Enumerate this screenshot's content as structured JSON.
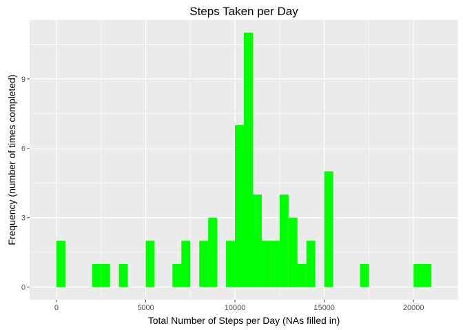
{
  "chart_data": {
    "type": "bar",
    "title": "Steps Taken per Day",
    "xlabel": "Total Number of Steps per Day (NAs filled in)",
    "ylabel": "Frequency (number of times completed)",
    "bin_width": 500,
    "bin_start": 0,
    "xlim": [
      -1500,
      22500
    ],
    "ylim": [
      -0.55,
      11.55
    ],
    "x_ticks": [
      0,
      5000,
      10000,
      15000,
      20000
    ],
    "x_tick_labels": [
      "0",
      "5000",
      "10000",
      "15000",
      "20000"
    ],
    "y_ticks": [
      0,
      3,
      6,
      9
    ],
    "y_tick_labels": [
      "0",
      "3",
      "6",
      "9"
    ],
    "grid": true,
    "panel_color": "#ebebeb",
    "grid_color": "#ffffff",
    "bar_color": "#00ff00",
    "values": [
      2,
      0,
      0,
      0,
      1,
      1,
      0,
      1,
      0,
      0,
      2,
      0,
      0,
      1,
      2,
      0,
      2,
      3,
      0,
      2,
      7,
      11,
      4,
      2,
      2,
      4,
      3,
      1,
      2,
      0,
      5,
      0,
      0,
      0,
      1,
      0,
      0,
      0,
      0,
      0,
      1,
      1
    ]
  }
}
